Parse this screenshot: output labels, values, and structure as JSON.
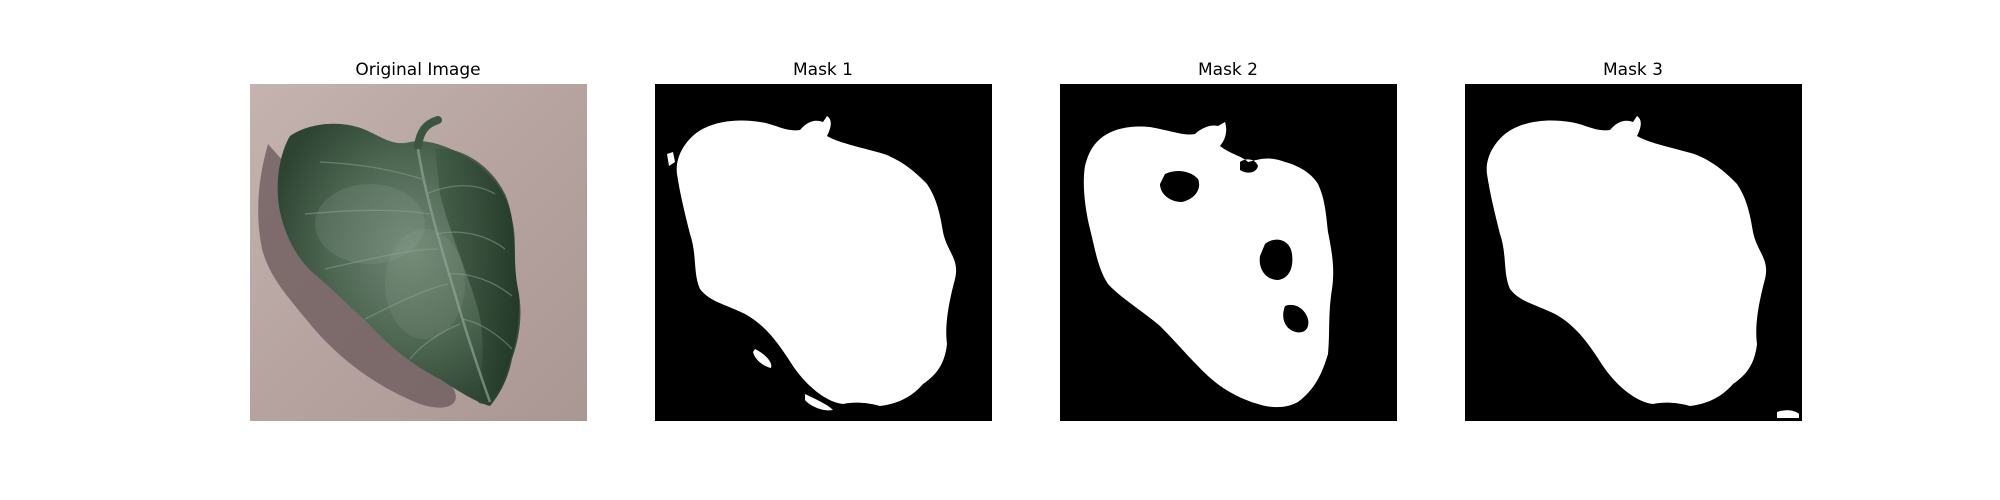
{
  "figure": {
    "panels": [
      {
        "title": "Original Image",
        "kind": "photo",
        "subject": "leaf-photo"
      },
      {
        "title": "Mask 1",
        "kind": "mask"
      },
      {
        "title": "Mask 2",
        "kind": "mask"
      },
      {
        "title": "Mask 3",
        "kind": "mask"
      }
    ]
  },
  "colors": {
    "background_photo": "#b8a6a2",
    "leaf_dark": "#2f4a36",
    "leaf_mid": "#4f6a55",
    "leaf_light": "#7a8d80",
    "shadow": "#5a4a4c",
    "mask_bg": "#000000",
    "mask_fg": "#ffffff"
  }
}
